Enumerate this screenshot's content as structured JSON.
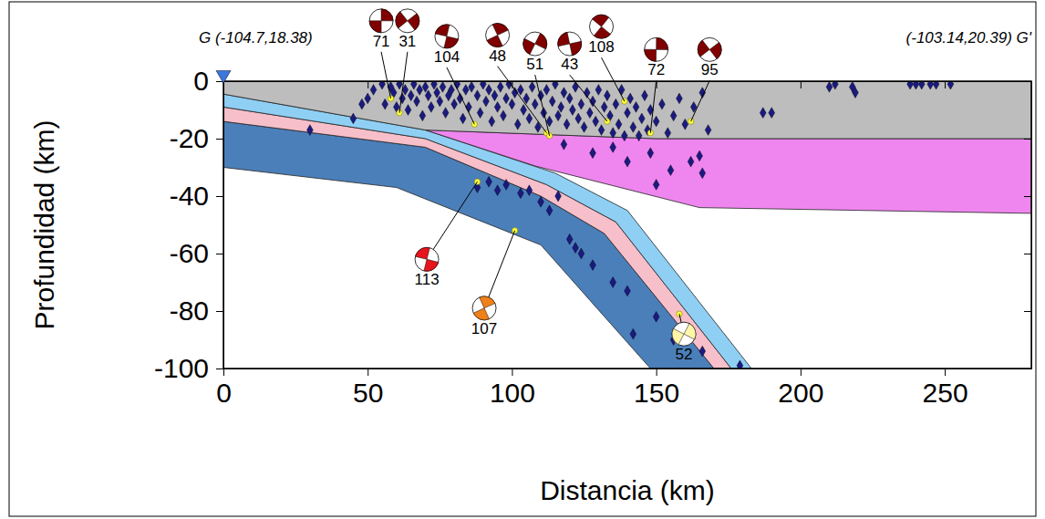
{
  "chart_data": {
    "type": "scatter",
    "x_label": "Distancia (km)",
    "y_label": "Profundidad (km)",
    "xlim": [
      0,
      280
    ],
    "ylim": [
      -100,
      0
    ],
    "xticks": [
      0,
      50,
      100,
      150,
      200,
      250
    ],
    "yticks": [
      -100,
      -80,
      -60,
      -40,
      -20,
      0
    ],
    "annotations": [
      {
        "text": "G (-104.7,18.38)"
      },
      {
        "text": "(-103.14,20.39) G'"
      }
    ],
    "areas": [
      {
        "color": "#4b7fb9",
        "x": [
          0,
          70,
          110,
          132,
          170,
          148,
          110,
          60,
          0
        ],
        "y": [
          -14,
          -23,
          -40,
          -53,
          -100,
          -100,
          -57,
          -37,
          -30
        ]
      },
      {
        "color": "#f7bfca",
        "x": [
          0,
          70,
          112,
          136,
          176,
          170,
          132,
          110,
          70,
          0
        ],
        "y": [
          -9,
          -20,
          -36,
          -49,
          -100,
          -100,
          -53,
          -40,
          -23,
          -14
        ]
      },
      {
        "color": "#8fcff4",
        "x": [
          0,
          70,
          115,
          140,
          183,
          176,
          136,
          112,
          70,
          0
        ],
        "y": [
          -4.5,
          -17,
          -32,
          -45,
          -100,
          -100,
          -49,
          -36,
          -20,
          -9
        ]
      },
      {
        "color": "#ef86ef",
        "x": [
          70,
          150,
          280,
          280,
          165,
          108
        ],
        "y": [
          -17,
          -20,
          -20,
          -46,
          -44,
          -29.5
        ]
      },
      {
        "color": "#bdbdbd",
        "x": [
          0,
          280,
          280,
          150,
          70,
          0
        ],
        "y": [
          0,
          0,
          -20,
          -20,
          -17,
          -4.5
        ]
      }
    ],
    "series": [
      {
        "color": "#1a1a80",
        "marker": "diamond",
        "x": [
          30,
          45,
          48,
          50,
          52,
          55,
          56,
          58,
          59,
          60,
          61,
          62,
          63,
          64,
          65,
          66,
          67,
          68,
          69,
          70,
          71,
          72,
          73,
          74,
          75,
          76,
          77,
          78,
          79,
          80,
          81,
          82,
          83,
          84,
          85,
          86,
          88,
          89,
          90,
          91,
          92,
          93,
          94,
          95,
          96,
          97,
          98,
          99,
          100,
          101,
          102,
          103,
          104,
          105,
          106,
          107,
          108,
          109,
          110,
          111,
          112,
          113,
          114,
          115,
          116,
          117,
          118,
          119,
          120,
          121,
          122,
          123,
          124,
          125,
          126,
          127,
          128,
          129,
          130,
          131,
          132,
          133,
          134,
          135,
          136,
          137,
          138,
          139,
          140,
          141,
          142,
          143,
          144,
          145,
          146,
          147,
          148,
          150,
          152,
          154,
          156,
          158,
          160,
          163,
          166,
          168,
          118,
          128,
          135,
          140,
          148,
          155,
          162,
          165,
          166,
          150,
          88,
          92,
          95,
          98,
          103,
          106,
          110,
          113,
          116,
          120,
          122,
          124,
          128,
          135,
          140,
          142,
          150,
          156,
          166,
          179,
          187,
          190,
          210,
          212,
          218,
          219,
          238,
          240,
          242,
          245,
          247,
          252
        ],
        "values": [
          -17,
          -13,
          -8,
          -6,
          -3,
          -1,
          -8,
          -2,
          -4,
          -9,
          -1,
          -6,
          -3,
          -10,
          -5,
          -1,
          -7,
          -3,
          -12,
          -2,
          -5,
          -9,
          -1,
          -4,
          -7,
          -2,
          -11,
          -5,
          -3,
          -8,
          -1,
          -6,
          -13,
          -3,
          -9,
          -2,
          -5,
          -11,
          -1,
          -7,
          -3,
          -14,
          -5,
          -9,
          -2,
          -12,
          -6,
          -1,
          -8,
          -4,
          -15,
          -3,
          -10,
          -6,
          -13,
          -2,
          -8,
          -16,
          -5,
          -11,
          -3,
          -14,
          -7,
          -1,
          -12,
          -9,
          -4,
          -15,
          -6,
          -10,
          -2,
          -13,
          -8,
          -16,
          -4,
          -11,
          -7,
          -14,
          -3,
          -17,
          -9,
          -5,
          -12,
          -18,
          -8,
          -15,
          -3,
          -19,
          -11,
          -6,
          -16,
          -9,
          -19,
          -13,
          -5,
          -17,
          -10,
          -14,
          -8,
          -18,
          -12,
          -6,
          -15,
          -9,
          -4,
          -17,
          -22,
          -25,
          -23,
          -28,
          -25,
          -31,
          -28,
          -26,
          -32,
          -36,
          -37,
          -35,
          -38,
          -36,
          -39,
          -38,
          -42,
          -45,
          -40,
          -55,
          -58,
          -60,
          -64,
          -70,
          -73,
          -88,
          -82,
          -90,
          -94,
          -99,
          -11,
          -11,
          -2,
          -1,
          -2,
          -4,
          -1,
          -1,
          -1,
          -1,
          -1,
          -1
        ]
      }
    ],
    "mechanisms": [
      {
        "label": "71",
        "color": "#800000",
        "x": 58,
        "y": -6,
        "ball_x": 54.7,
        "ball_y": 21
      },
      {
        "label": "31",
        "color": "#800000",
        "x": 61,
        "y": -11,
        "ball_x": 63.8,
        "ball_y": 21
      },
      {
        "label": "104",
        "color": "#800000",
        "x": 87,
        "y": -15,
        "ball_x": 77.4,
        "ball_y": 15.6
      },
      {
        "label": "48",
        "color": "#800000",
        "x": 112,
        "y": -18,
        "ball_x": 95,
        "ball_y": 16
      },
      {
        "label": "51",
        "color": "#800000",
        "x": 113,
        "y": -19,
        "ball_x": 108,
        "ball_y": 13
      },
      {
        "label": "43",
        "color": "#800000",
        "x": 133,
        "y": -14,
        "ball_x": 120,
        "ball_y": 13
      },
      {
        "label": "108",
        "color": "#800000",
        "x": 139,
        "y": -7,
        "ball_x": 131,
        "ball_y": 19
      },
      {
        "label": "72",
        "color": "#800000",
        "x": 148,
        "y": -18,
        "ball_x": 150,
        "ball_y": 11
      },
      {
        "label": "95",
        "color": "#800000",
        "x": 162,
        "y": -14,
        "ball_x": 168.5,
        "ball_y": 11
      },
      {
        "label": "113",
        "color": "#e8141c",
        "x": 88,
        "y": -35,
        "ball_x": 70.5,
        "ball_y": -62
      },
      {
        "label": "107",
        "color": "#f08018",
        "x": 101,
        "y": -52,
        "ball_x": 90.4,
        "ball_y": -79
      },
      {
        "label": "52",
        "color": "#fff5a8",
        "x": 158,
        "y": -81,
        "ball_x": 159.6,
        "ball_y": -88
      }
    ],
    "station": {
      "x": 0,
      "y": 0,
      "color": "#3a78e0",
      "marker": "triangle-down"
    }
  }
}
